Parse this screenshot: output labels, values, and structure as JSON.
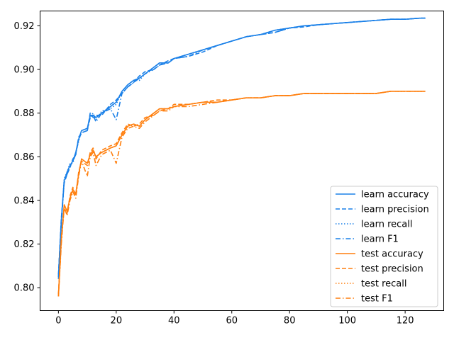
{
  "chart_data": {
    "type": "line",
    "title": "",
    "xlabel": "",
    "ylabel": "",
    "xlim": [
      -6.35,
      133.35
    ],
    "ylim": [
      0.7895,
      0.9268
    ],
    "x_ticks": [
      0,
      20,
      40,
      60,
      80,
      100,
      120
    ],
    "y_ticks": [
      0.8,
      0.82,
      0.84,
      0.86,
      0.88,
      0.9,
      0.92
    ],
    "y_tick_labels": [
      "0.80",
      "0.82",
      "0.84",
      "0.86",
      "0.88",
      "0.90",
      "0.92"
    ],
    "grid": false,
    "legend_position": "lower-right",
    "x": [
      0,
      1,
      2,
      3,
      4,
      5,
      6,
      7,
      8,
      10,
      11,
      12,
      13,
      15,
      18,
      20,
      22,
      24,
      26,
      28,
      30,
      33,
      35,
      38,
      40,
      45,
      50,
      55,
      60,
      65,
      70,
      75,
      80,
      85,
      90,
      95,
      100,
      105,
      110,
      115,
      120,
      125,
      127
    ],
    "series": [
      {
        "name": "learn accuracy",
        "color": "#1f77b4",
        "display_color": "#1a80e8",
        "dash": "solid",
        "values": [
          0.805,
          0.831,
          0.849,
          0.853,
          0.856,
          0.858,
          0.862,
          0.868,
          0.872,
          0.873,
          0.879,
          0.879,
          0.878,
          0.88,
          0.883,
          0.885,
          0.89,
          0.893,
          0.895,
          0.896,
          0.898,
          0.901,
          0.903,
          0.903,
          0.905,
          0.907,
          0.909,
          0.911,
          0.913,
          0.915,
          0.916,
          0.918,
          0.919,
          0.92,
          0.9205,
          0.921,
          0.9215,
          0.922,
          0.9225,
          0.923,
          0.923,
          0.9235,
          0.9235
        ]
      },
      {
        "name": "learn precision",
        "color": "#1f77b4",
        "display_color": "#1a80e8",
        "dash": "dashed",
        "values": [
          0.806,
          0.832,
          0.848,
          0.852,
          0.855,
          0.859,
          0.861,
          0.869,
          0.871,
          0.872,
          0.88,
          0.878,
          0.879,
          0.879,
          0.884,
          0.886,
          0.889,
          0.892,
          0.894,
          0.897,
          0.899,
          0.9,
          0.902,
          0.904,
          0.905,
          0.906,
          0.908,
          0.911,
          0.913,
          0.915,
          0.916,
          0.917,
          0.919,
          0.9195,
          0.9205,
          0.921,
          0.9215,
          0.922,
          0.9225,
          0.923,
          0.923,
          0.9235,
          0.9235
        ]
      },
      {
        "name": "learn recall",
        "color": "#1f77b4",
        "display_color": "#1a80e8",
        "dash": "dotted",
        "values": [
          0.805,
          0.83,
          0.85,
          0.853,
          0.857,
          0.857,
          0.862,
          0.867,
          0.872,
          0.873,
          0.878,
          0.88,
          0.877,
          0.881,
          0.882,
          0.884,
          0.89,
          0.893,
          0.895,
          0.895,
          0.898,
          0.901,
          0.903,
          0.903,
          0.905,
          0.907,
          0.909,
          0.911,
          0.913,
          0.915,
          0.916,
          0.918,
          0.919,
          0.92,
          0.9205,
          0.921,
          0.9215,
          0.922,
          0.9225,
          0.923,
          0.923,
          0.9235,
          0.9235
        ]
      },
      {
        "name": "learn F1",
        "color": "#1f77b4",
        "display_color": "#1a80e8",
        "dash": "dashdot",
        "values": [
          0.804,
          0.829,
          0.849,
          0.852,
          0.856,
          0.858,
          0.861,
          0.868,
          0.871,
          0.872,
          0.878,
          0.879,
          0.876,
          0.88,
          0.882,
          0.877,
          0.889,
          0.892,
          0.894,
          0.896,
          0.898,
          0.9,
          0.902,
          0.903,
          0.905,
          0.906,
          0.909,
          0.911,
          0.913,
          0.915,
          0.916,
          0.917,
          0.919,
          0.92,
          0.9205,
          0.921,
          0.9215,
          0.922,
          0.9225,
          0.923,
          0.923,
          0.9235,
          0.9235
        ]
      },
      {
        "name": "test accuracy",
        "color": "#ff7f0e",
        "display_color": "#ff7f0e",
        "dash": "solid",
        "values": [
          0.796,
          0.822,
          0.838,
          0.835,
          0.841,
          0.845,
          0.843,
          0.852,
          0.859,
          0.857,
          0.861,
          0.863,
          0.86,
          0.862,
          0.864,
          0.865,
          0.87,
          0.874,
          0.875,
          0.874,
          0.877,
          0.88,
          0.882,
          0.882,
          0.883,
          0.884,
          0.885,
          0.885,
          0.886,
          0.887,
          0.887,
          0.888,
          0.888,
          0.889,
          0.889,
          0.889,
          0.889,
          0.889,
          0.889,
          0.89,
          0.89,
          0.89,
          0.89
        ]
      },
      {
        "name": "test precision",
        "color": "#ff7f0e",
        "display_color": "#ff7f0e",
        "dash": "dashed",
        "values": [
          0.797,
          0.823,
          0.836,
          0.834,
          0.842,
          0.846,
          0.842,
          0.853,
          0.858,
          0.856,
          0.862,
          0.864,
          0.859,
          0.863,
          0.865,
          0.866,
          0.871,
          0.875,
          0.874,
          0.875,
          0.878,
          0.879,
          0.881,
          0.882,
          0.884,
          0.884,
          0.885,
          0.886,
          0.886,
          0.887,
          0.887,
          0.888,
          0.888,
          0.889,
          0.889,
          0.889,
          0.889,
          0.889,
          0.889,
          0.89,
          0.89,
          0.89,
          0.89
        ]
      },
      {
        "name": "test recall",
        "color": "#ff7f0e",
        "display_color": "#ff7f0e",
        "dash": "dotted",
        "values": [
          0.796,
          0.821,
          0.838,
          0.835,
          0.841,
          0.845,
          0.843,
          0.852,
          0.859,
          0.857,
          0.861,
          0.863,
          0.86,
          0.862,
          0.864,
          0.865,
          0.87,
          0.874,
          0.875,
          0.874,
          0.877,
          0.88,
          0.882,
          0.882,
          0.883,
          0.884,
          0.885,
          0.885,
          0.886,
          0.887,
          0.887,
          0.888,
          0.888,
          0.889,
          0.889,
          0.889,
          0.889,
          0.889,
          0.889,
          0.89,
          0.89,
          0.89,
          0.89
        ]
      },
      {
        "name": "test F1",
        "color": "#ff7f0e",
        "display_color": "#ff7f0e",
        "dash": "dashdot",
        "values": [
          0.796,
          0.82,
          0.837,
          0.833,
          0.84,
          0.844,
          0.841,
          0.851,
          0.858,
          0.851,
          0.86,
          0.862,
          0.856,
          0.861,
          0.863,
          0.857,
          0.869,
          0.873,
          0.874,
          0.873,
          0.876,
          0.879,
          0.881,
          0.881,
          0.883,
          0.883,
          0.884,
          0.885,
          0.886,
          0.887,
          0.887,
          0.888,
          0.888,
          0.889,
          0.889,
          0.889,
          0.889,
          0.889,
          0.889,
          0.89,
          0.89,
          0.89,
          0.89
        ]
      }
    ]
  }
}
